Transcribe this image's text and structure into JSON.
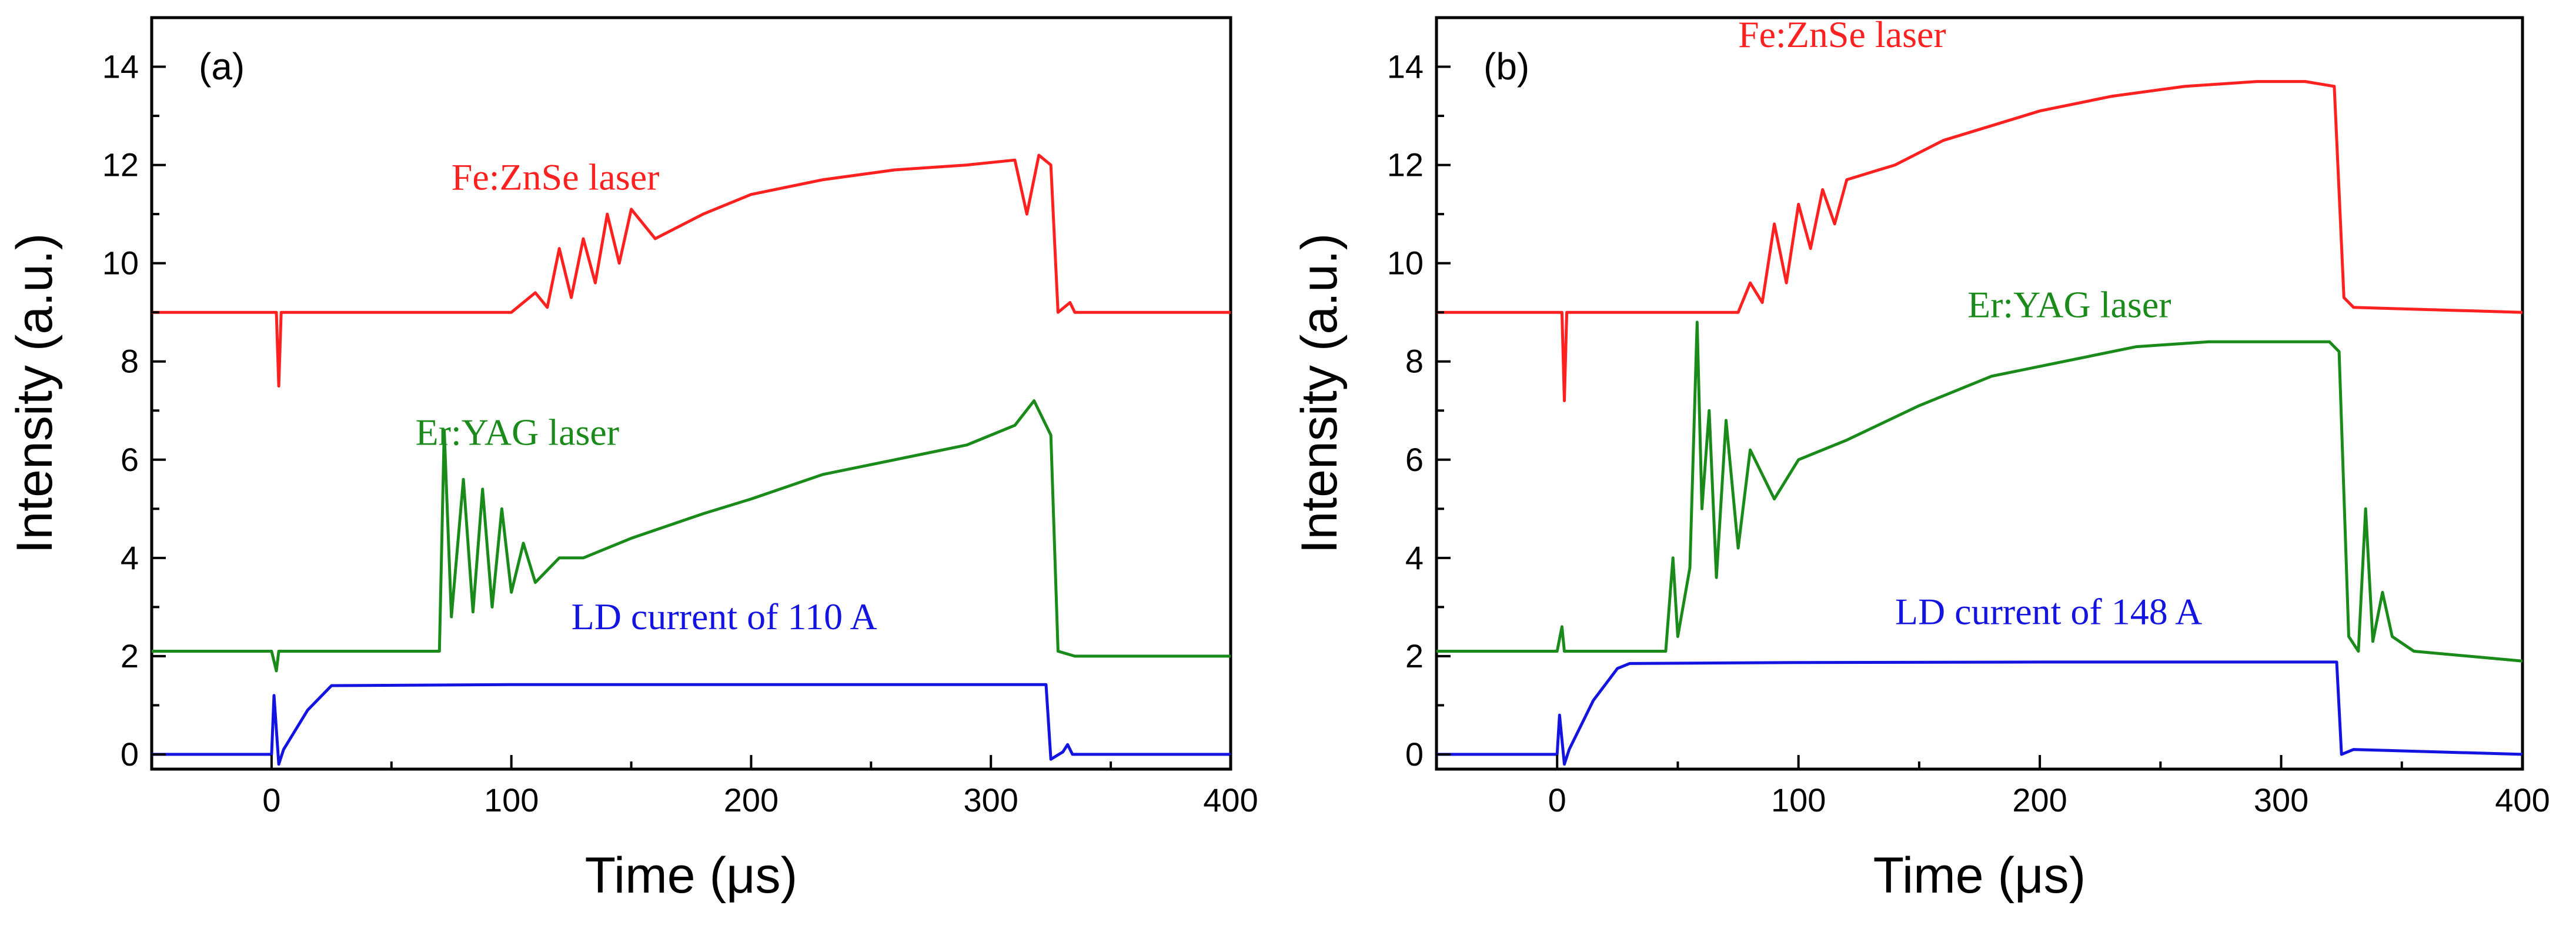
{
  "chart_data": [
    {
      "type": "line",
      "panel_label": "(a)",
      "xlabel": "Time (μs)",
      "ylabel": "Intensity (a.u.)",
      "xlim": [
        -50,
        400
      ],
      "ylim": [
        -0.3,
        15
      ],
      "xticks": [
        0,
        100,
        200,
        300,
        400
      ],
      "yticks": [
        0,
        2,
        4,
        6,
        8,
        10,
        12,
        14
      ],
      "grid": false,
      "series": [
        {
          "name": "Fe:ZnSe laser",
          "color": "#ff2020",
          "label_pos": [
            75,
            11.5
          ],
          "points": [
            [
              -50,
              9.0
            ],
            [
              0,
              9.0
            ],
            [
              2,
              9.0
            ],
            [
              3,
              7.5
            ],
            [
              4,
              9.0
            ],
            [
              100,
              9.0
            ],
            [
              110,
              9.4
            ],
            [
              115,
              9.1
            ],
            [
              120,
              10.3
            ],
            [
              125,
              9.3
            ],
            [
              130,
              10.5
            ],
            [
              135,
              9.6
            ],
            [
              140,
              11.0
            ],
            [
              145,
              10.0
            ],
            [
              150,
              11.1
            ],
            [
              160,
              10.5
            ],
            [
              180,
              11.0
            ],
            [
              200,
              11.4
            ],
            [
              230,
              11.7
            ],
            [
              260,
              11.9
            ],
            [
              290,
              12.0
            ],
            [
              310,
              12.1
            ],
            [
              315,
              11.0
            ],
            [
              320,
              12.2
            ],
            [
              325,
              12.0
            ],
            [
              328,
              9.0
            ],
            [
              333,
              9.2
            ],
            [
              335,
              9.0
            ],
            [
              400,
              9.0
            ]
          ]
        },
        {
          "name": "Er:YAG laser",
          "color": "#1a8a1a",
          "label_pos": [
            60,
            6.3
          ],
          "points": [
            [
              -50,
              2.1
            ],
            [
              0,
              2.1
            ],
            [
              2,
              1.7
            ],
            [
              3,
              2.1
            ],
            [
              68,
              2.1
            ],
            [
              70,
              2.1
            ],
            [
              72,
              6.6
            ],
            [
              75,
              2.8
            ],
            [
              80,
              5.6
            ],
            [
              84,
              2.9
            ],
            [
              88,
              5.4
            ],
            [
              92,
              3.0
            ],
            [
              96,
              5.0
            ],
            [
              100,
              3.3
            ],
            [
              105,
              4.3
            ],
            [
              110,
              3.5
            ],
            [
              120,
              4.0
            ],
            [
              130,
              4.0
            ],
            [
              150,
              4.4
            ],
            [
              180,
              4.9
            ],
            [
              200,
              5.2
            ],
            [
              230,
              5.7
            ],
            [
              260,
              6.0
            ],
            [
              290,
              6.3
            ],
            [
              310,
              6.7
            ],
            [
              318,
              7.2
            ],
            [
              325,
              6.5
            ],
            [
              328,
              2.1
            ],
            [
              335,
              2.0
            ],
            [
              400,
              2.0
            ]
          ]
        },
        {
          "name": "LD current of 110 A",
          "color": "#1414e0",
          "label_pos": [
            125,
            2.55
          ],
          "points": [
            [
              -50,
              0.0
            ],
            [
              0,
              0.0
            ],
            [
              1,
              1.2
            ],
            [
              3,
              -0.2
            ],
            [
              5,
              0.1
            ],
            [
              15,
              0.9
            ],
            [
              25,
              1.4
            ],
            [
              100,
              1.42
            ],
            [
              200,
              1.42
            ],
            [
              300,
              1.42
            ],
            [
              323,
              1.42
            ],
            [
              325,
              -0.1
            ],
            [
              330,
              0.05
            ],
            [
              332,
              0.2
            ],
            [
              334,
              0.0
            ],
            [
              400,
              0.0
            ]
          ]
        }
      ]
    },
    {
      "type": "line",
      "panel_label": "(b)",
      "xlabel": "Time (μs)",
      "ylabel": "Intensity (a.u.)",
      "xlim": [
        -50,
        400
      ],
      "ylim": [
        -0.3,
        15
      ],
      "xticks": [
        0,
        100,
        200,
        300,
        400
      ],
      "yticks": [
        0,
        2,
        4,
        6,
        8,
        10,
        12,
        14
      ],
      "grid": false,
      "series": [
        {
          "name": "Fe:ZnSe laser",
          "color": "#ff2020",
          "label_pos": [
            75,
            14.4
          ],
          "points": [
            [
              -50,
              9.0
            ],
            [
              0,
              9.0
            ],
            [
              2,
              9.0
            ],
            [
              3,
              7.2
            ],
            [
              4,
              9.0
            ],
            [
              75,
              9.0
            ],
            [
              80,
              9.6
            ],
            [
              85,
              9.2
            ],
            [
              90,
              10.8
            ],
            [
              95,
              9.6
            ],
            [
              100,
              11.2
            ],
            [
              105,
              10.3
            ],
            [
              110,
              11.5
            ],
            [
              115,
              10.8
            ],
            [
              120,
              11.7
            ],
            [
              140,
              12.0
            ],
            [
              160,
              12.5
            ],
            [
              180,
              12.8
            ],
            [
              200,
              13.1
            ],
            [
              230,
              13.4
            ],
            [
              260,
              13.6
            ],
            [
              290,
              13.7
            ],
            [
              310,
              13.7
            ],
            [
              322,
              13.6
            ],
            [
              326,
              9.3
            ],
            [
              330,
              9.1
            ],
            [
              400,
              9.0
            ]
          ]
        },
        {
          "name": "Er:YAG laser",
          "color": "#1a8a1a",
          "label_pos": [
            170,
            8.9
          ],
          "points": [
            [
              -50,
              2.1
            ],
            [
              0,
              2.1
            ],
            [
              2,
              2.6
            ],
            [
              3,
              2.1
            ],
            [
              45,
              2.1
            ],
            [
              48,
              4.0
            ],
            [
              50,
              2.4
            ],
            [
              55,
              3.8
            ],
            [
              58,
              8.8
            ],
            [
              60,
              5.0
            ],
            [
              63,
              7.0
            ],
            [
              66,
              3.6
            ],
            [
              70,
              6.8
            ],
            [
              75,
              4.2
            ],
            [
              80,
              6.2
            ],
            [
              90,
              5.2
            ],
            [
              100,
              6.0
            ],
            [
              120,
              6.4
            ],
            [
              150,
              7.1
            ],
            [
              180,
              7.7
            ],
            [
              210,
              8.0
            ],
            [
              240,
              8.3
            ],
            [
              270,
              8.4
            ],
            [
              300,
              8.4
            ],
            [
              320,
              8.4
            ],
            [
              324,
              8.2
            ],
            [
              328,
              2.4
            ],
            [
              332,
              2.1
            ],
            [
              335,
              5.0
            ],
            [
              338,
              2.3
            ],
            [
              342,
              3.3
            ],
            [
              346,
              2.4
            ],
            [
              355,
              2.1
            ],
            [
              400,
              1.9
            ]
          ]
        },
        {
          "name": "LD current of 148 A",
          "color": "#1414e0",
          "label_pos": [
            140,
            2.65
          ],
          "points": [
            [
              -50,
              0.0
            ],
            [
              0,
              0.0
            ],
            [
              1,
              0.8
            ],
            [
              3,
              -0.2
            ],
            [
              5,
              0.1
            ],
            [
              15,
              1.1
            ],
            [
              25,
              1.75
            ],
            [
              30,
              1.85
            ],
            [
              100,
              1.87
            ],
            [
              200,
              1.88
            ],
            [
              300,
              1.88
            ],
            [
              323,
              1.88
            ],
            [
              325,
              0.0
            ],
            [
              330,
              0.1
            ],
            [
              400,
              0.0
            ]
          ]
        }
      ]
    }
  ]
}
